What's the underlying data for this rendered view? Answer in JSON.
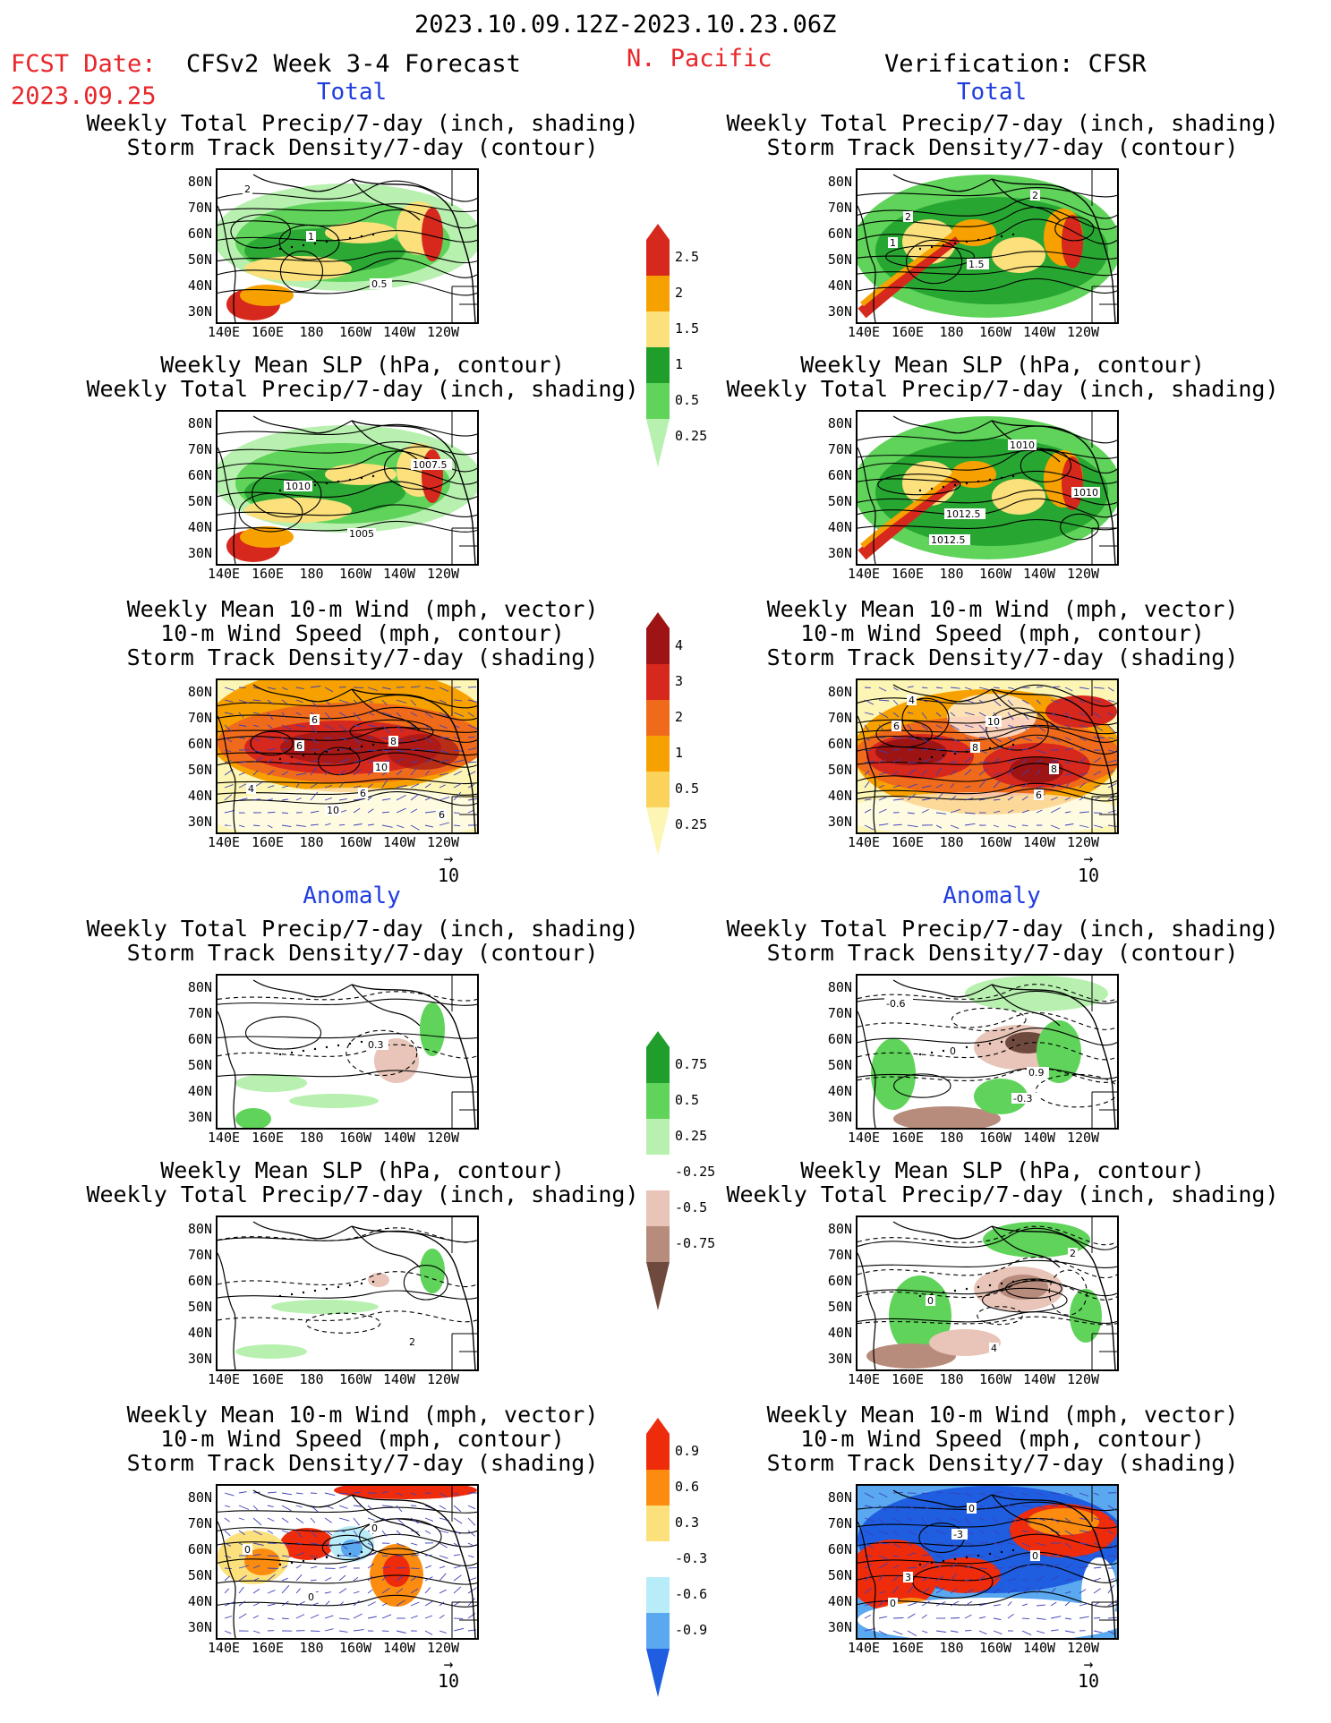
{
  "header": {
    "date_range": "2023.10.09.12Z-2023.10.23.06Z",
    "fcst_label": "FCST Date:",
    "fcst_date": "2023.09.25",
    "model_title": "CFSv2 Week 3-4 Forecast",
    "region": "N. Pacific",
    "verification": "Verification: CFSR"
  },
  "sections": {
    "total": "Total",
    "anomaly": "Anomaly"
  },
  "axes": {
    "lat_ticks": [
      "80N",
      "70N",
      "60N",
      "50N",
      "40N",
      "30N"
    ],
    "lon_ticks": [
      "140E",
      "160E",
      "180",
      "160W",
      "140W",
      "120W"
    ]
  },
  "vector_reference": "10",
  "panels": [
    {
      "lines": [
        "Weekly Total Precip/7-day (inch, shading)",
        "Storm Track Density/7-day (contour)"
      ],
      "style": "precip",
      "labels": [
        "2",
        "1",
        "0.5"
      ]
    },
    {
      "lines": [
        "Weekly Total Precip/7-day (inch, shading)",
        "Storm Track Density/7-day (contour)"
      ],
      "style": "precip2",
      "labels": [
        "2",
        "1.5",
        "2",
        "1"
      ]
    },
    {
      "lines": [
        "Weekly Mean SLP (hPa, contour)",
        "Weekly Total Precip/7-day (inch, shading)"
      ],
      "style": "precip",
      "labels": [
        "1010",
        "1005",
        "1007.5"
      ]
    },
    {
      "lines": [
        "Weekly Mean SLP (hPa, contour)",
        "Weekly Total Precip/7-day (inch, shading)"
      ],
      "style": "precip2",
      "labels": [
        "1012.5",
        "1010",
        "1010",
        "1012.5"
      ]
    },
    {
      "lines": [
        "Weekly Mean 10-m Wind (mph, vector)",
        "10-m Wind Speed (mph, contour)",
        "Storm Track Density/7-day (shading)"
      ],
      "style": "storm",
      "labels": [
        "10",
        "8",
        "4",
        "6",
        "10",
        "6",
        "6",
        "6"
      ]
    },
    {
      "lines": [
        "Weekly Mean 10-m Wind (mph, vector)",
        "10-m Wind Speed (mph, contour)",
        "Storm Track Density/7-day (shading)"
      ],
      "style": "storm2",
      "labels": [
        "10",
        "8",
        "4",
        "8",
        "6",
        "6"
      ]
    },
    {
      "lines": [
        "Weekly Total Precip/7-day (inch, shading)",
        "Storm Track Density/7-day (contour)"
      ],
      "style": "anom",
      "labels": [
        "0.3"
      ]
    },
    {
      "lines": [
        "Weekly Total Precip/7-day (inch, shading)",
        "Storm Track Density/7-day (contour)"
      ],
      "style": "anom2",
      "labels": [
        "0.9",
        "-0.6",
        "0",
        "-0.3"
      ]
    },
    {
      "lines": [
        "Weekly Mean SLP (hPa, contour)",
        "Weekly Total Precip/7-day (inch, shading)"
      ],
      "style": "anomslp",
      "labels": [
        "2"
      ]
    },
    {
      "lines": [
        "Weekly Mean SLP (hPa, contour)",
        "Weekly Total Precip/7-day (inch, shading)"
      ],
      "style": "anomslp2",
      "labels": [
        "2",
        "0",
        "4"
      ]
    },
    {
      "lines": [
        "Weekly Mean 10-m Wind (mph, vector)",
        "10-m Wind Speed (mph, contour)",
        "Storm Track Density/7-day (shading)"
      ],
      "style": "windanom",
      "labels": [
        "0",
        "0",
        "0"
      ]
    },
    {
      "lines": [
        "Weekly Mean 10-m Wind (mph, vector)",
        "10-m Wind Speed (mph, contour)",
        "Storm Track Density/7-day (shading)"
      ],
      "style": "windanom2",
      "labels": [
        "3",
        "0",
        "0",
        "0",
        "-3"
      ]
    }
  ],
  "colorbars": [
    {
      "labels": [
        "2.5",
        "2",
        "1.5",
        "1",
        "0.5",
        "0.25"
      ],
      "colors": [
        "#d6281c",
        "#f7a100",
        "#fbe07c",
        "#1f9e2c",
        "#5fd35a",
        "#b8f0b0"
      ]
    },
    {
      "labels": [
        "4",
        "3",
        "2",
        "1",
        "0.5",
        "0.25"
      ],
      "colors": [
        "#9e1414",
        "#d6281c",
        "#f06a1c",
        "#f7a100",
        "#fbd25a",
        "#fdf5b4"
      ]
    },
    {
      "labels": [
        "0.75",
        "0.5",
        "0.25",
        "-0.25",
        "-0.5",
        "-0.75"
      ],
      "colors": [
        "#1f9e2c",
        "#5fd35a",
        "#b8f0b0",
        "#ffffff",
        "#e8c5b8",
        "#b88c7c",
        "#6e4a3e"
      ]
    },
    {
      "labels": [
        "0.9",
        "0.6",
        "0.3",
        "-0.3",
        "-0.6",
        "-0.9"
      ],
      "colors": [
        "#ee2c0c",
        "#fb8c10",
        "#fbe07c",
        "#ffffff",
        "#b8ecf8",
        "#5aa8f0",
        "#1f5ee0"
      ]
    }
  ]
}
